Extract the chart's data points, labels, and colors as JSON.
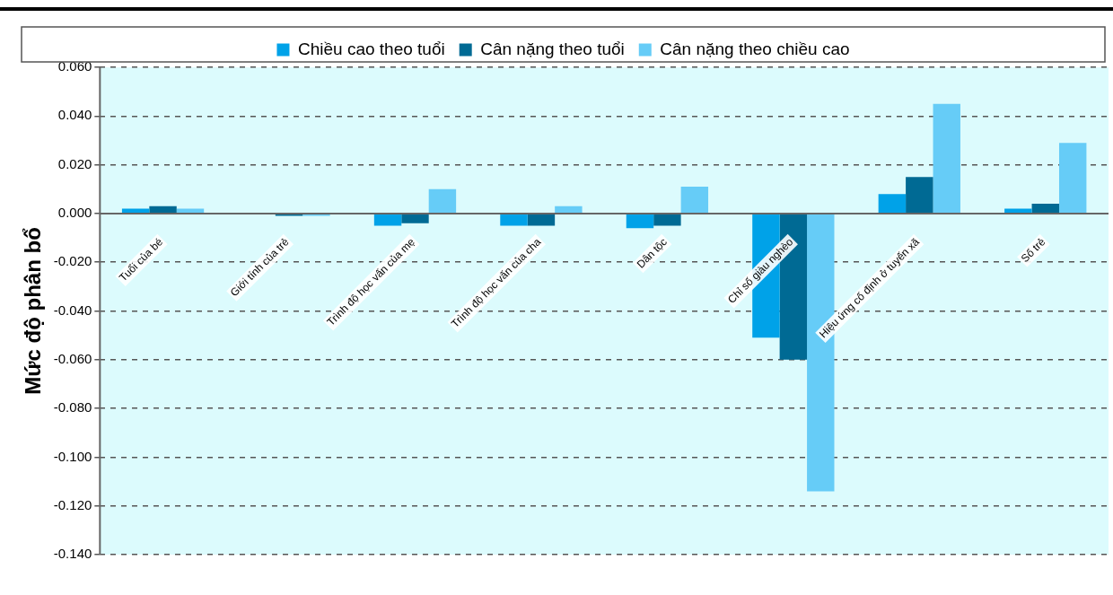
{
  "chart_data": {
    "type": "bar",
    "ylabel": "Mức độ phân bổ",
    "categories": [
      "Tuổi của bé",
      "Giới tính của trẻ",
      "Trình độ học vấn của mẹ",
      "Trình độ học vấn của cha",
      "Dân tộc",
      "Chỉ số giàu nghèo",
      "Hiệu ứng cố định ở tuyến xã",
      "Số trẻ"
    ],
    "series": [
      {
        "name": "Chiều cao theo tuổi",
        "color": "#00a2e8",
        "values": [
          0.002,
          0.0,
          -0.005,
          -0.005,
          -0.006,
          -0.051,
          0.008,
          0.002
        ]
      },
      {
        "name": "Cân nặng theo tuổi",
        "color": "#006a94",
        "values": [
          0.003,
          -0.001,
          -0.004,
          -0.005,
          -0.005,
          -0.06,
          0.015,
          0.004
        ]
      },
      {
        "name": "Cân nặng theo chiều cao",
        "color": "#66ccf7",
        "values": [
          0.002,
          -0.001,
          0.01,
          0.003,
          0.011,
          -0.114,
          0.045,
          0.029
        ]
      }
    ],
    "ylim": [
      -0.14,
      0.06
    ],
    "yticks": [
      {
        "value": -0.14,
        "label": "-0.140"
      },
      {
        "value": -0.12,
        "label": "-0.120"
      },
      {
        "value": -0.1,
        "label": "-0.100"
      },
      {
        "value": -0.08,
        "label": "-0.080"
      },
      {
        "value": -0.06,
        "label": "-0.060"
      },
      {
        "value": -0.04,
        "label": "-0.040"
      },
      {
        "value": -0.02,
        "label": "-0.020"
      },
      {
        "value": 0,
        "label": "0.000"
      },
      {
        "value": 0.02,
        "label": "0.020"
      },
      {
        "value": 0.04,
        "label": "0.040"
      },
      {
        "value": 0.06,
        "label": "0.060"
      }
    ],
    "grid": "y",
    "legend": "top"
  }
}
